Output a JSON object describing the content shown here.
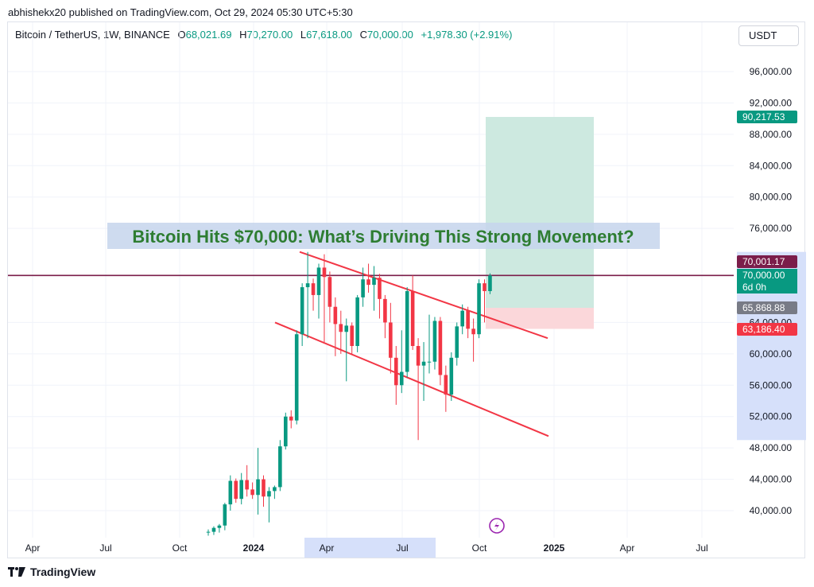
{
  "header": {
    "published": "abhishekx20 published on TradingView.com, Oct 29, 2024 05:30 UTC+5:30"
  },
  "legend": {
    "symbol": "Bitcoin / TetherUS, 1W, BINANCE",
    "o_label": "O",
    "o_value": "68,021.69",
    "h_label": "H",
    "h_value": "70,270.00",
    "l_label": "L",
    "l_value": "67,618.00",
    "c_label": "C",
    "c_value": "70,000.00",
    "change": "+1,978.30 (+2.91%)"
  },
  "currency_button": "USDT",
  "headline": "Bitcoin Hits $70,000: What’s Driving This Strong Movement?",
  "footer": {
    "brand": "TradingView"
  },
  "colors": {
    "up": "#089981",
    "down": "#f23645",
    "trendline": "#f23645",
    "headline_text": "#2e7d32",
    "headline_bg": "#c5d5ec",
    "profit_zone": "#cde9e0",
    "loss_zone": "#fbd7da",
    "hline": "#7b1d4a",
    "axis_highlight": "#d6e0fa"
  },
  "chart_data": {
    "type": "candlestick",
    "y_axis": {
      "range": [
        37500,
        100000
      ],
      "tick_labels": [
        "40,000.00",
        "44,000.00",
        "48,000.00",
        "52,000.00",
        "56,000.00",
        "60,000.00",
        "64,000.00",
        "76,000.00",
        "80,000.00",
        "84,000.00",
        "88,000.00",
        "92,000.00",
        "96,000.00"
      ],
      "tick_values": [
        40000,
        44000,
        48000,
        52000,
        56000,
        60000,
        64000,
        76000,
        80000,
        84000,
        88000,
        92000,
        96000
      ]
    },
    "x_axis": {
      "labels": [
        "Apr",
        "Jul",
        "Oct",
        "2024",
        "Apr",
        "Jul",
        "Oct",
        "2025",
        "Apr",
        "Jul"
      ],
      "bold_labels": [
        "2024",
        "2025"
      ]
    },
    "price_labels": [
      {
        "text": "90,217.53",
        "value": 90217.53,
        "color": "#089981"
      },
      {
        "text": "70,001.17",
        "value": 70001.17,
        "color": "#7b1d4a"
      },
      {
        "text": "70,000.00",
        "value": 70000,
        "color": "#089981"
      },
      {
        "text": "6d 0h",
        "value": 68700,
        "color": "#089981"
      },
      {
        "text": "65,868.88",
        "value": 65868.88,
        "color": "#787b86"
      },
      {
        "text": "63,186.40",
        "value": 63186.4,
        "color": "#f23645"
      }
    ],
    "horizontal_line": 70001.17,
    "position": {
      "entry": 65868.88,
      "target": 90217.53,
      "stop": 63186.4
    },
    "candles": [
      {
        "o": 37200,
        "h": 37600,
        "l": 36800,
        "c": 37300
      },
      {
        "o": 37300,
        "h": 38000,
        "l": 36900,
        "c": 37800
      },
      {
        "o": 37800,
        "h": 38300,
        "l": 37200,
        "c": 38100
      },
      {
        "o": 38100,
        "h": 41000,
        "l": 37500,
        "c": 40800
      },
      {
        "o": 40800,
        "h": 44500,
        "l": 40000,
        "c": 43800
      },
      {
        "o": 43800,
        "h": 44100,
        "l": 41000,
        "c": 41500
      },
      {
        "o": 41500,
        "h": 44800,
        "l": 40800,
        "c": 43900
      },
      {
        "o": 43900,
        "h": 45800,
        "l": 41800,
        "c": 42700
      },
      {
        "o": 42700,
        "h": 43600,
        "l": 41500,
        "c": 42000
      },
      {
        "o": 42000,
        "h": 48000,
        "l": 39500,
        "c": 44000
      },
      {
        "o": 44000,
        "h": 44500,
        "l": 40500,
        "c": 41800
      },
      {
        "o": 41800,
        "h": 43000,
        "l": 38500,
        "c": 42500
      },
      {
        "o": 42500,
        "h": 43200,
        "l": 41500,
        "c": 43000
      },
      {
        "o": 43000,
        "h": 49000,
        "l": 42500,
        "c": 48200
      },
      {
        "o": 48200,
        "h": 52500,
        "l": 47800,
        "c": 52000
      },
      {
        "o": 52000,
        "h": 52800,
        "l": 50500,
        "c": 51500
      },
      {
        "o": 51500,
        "h": 63000,
        "l": 51000,
        "c": 62500
      },
      {
        "o": 62500,
        "h": 69000,
        "l": 61000,
        "c": 68500
      },
      {
        "o": 68500,
        "h": 73000,
        "l": 62000,
        "c": 69000
      },
      {
        "o": 69000,
        "h": 69600,
        "l": 65500,
        "c": 67500
      },
      {
        "o": 67500,
        "h": 71500,
        "l": 64500,
        "c": 71000
      },
      {
        "o": 71000,
        "h": 72700,
        "l": 61500,
        "c": 69800
      },
      {
        "o": 69800,
        "h": 70500,
        "l": 64000,
        "c": 66000
      },
      {
        "o": 66000,
        "h": 67200,
        "l": 59700,
        "c": 63800
      },
      {
        "o": 63800,
        "h": 65500,
        "l": 60000,
        "c": 62800
      },
      {
        "o": 62800,
        "h": 64500,
        "l": 56500,
        "c": 63600
      },
      {
        "o": 63600,
        "h": 64000,
        "l": 60000,
        "c": 61000
      },
      {
        "o": 61000,
        "h": 67500,
        "l": 60200,
        "c": 67200
      },
      {
        "o": 67200,
        "h": 71000,
        "l": 66000,
        "c": 69500
      },
      {
        "o": 69500,
        "h": 71500,
        "l": 67800,
        "c": 68800
      },
      {
        "o": 68800,
        "h": 71200,
        "l": 65500,
        "c": 69700
      },
      {
        "o": 69700,
        "h": 70200,
        "l": 64500,
        "c": 67000
      },
      {
        "o": 67000,
        "h": 67500,
        "l": 62000,
        "c": 64000
      },
      {
        "o": 64000,
        "h": 66500,
        "l": 57500,
        "c": 59500
      },
      {
        "o": 59500,
        "h": 61000,
        "l": 53500,
        "c": 56000
      },
      {
        "o": 56000,
        "h": 63000,
        "l": 55000,
        "c": 57700
      },
      {
        "o": 57700,
        "h": 68500,
        "l": 57000,
        "c": 68000
      },
      {
        "o": 68000,
        "h": 70000,
        "l": 60500,
        "c": 61000
      },
      {
        "o": 61000,
        "h": 62000,
        "l": 49000,
        "c": 58500
      },
      {
        "o": 58500,
        "h": 61500,
        "l": 54000,
        "c": 59000
      },
      {
        "o": 59000,
        "h": 65000,
        "l": 57500,
        "c": 59000
      },
      {
        "o": 59000,
        "h": 64700,
        "l": 58000,
        "c": 64200
      },
      {
        "o": 64200,
        "h": 64700,
        "l": 56000,
        "c": 57300
      },
      {
        "o": 57300,
        "h": 58500,
        "l": 52600,
        "c": 54800
      },
      {
        "o": 54800,
        "h": 60200,
        "l": 54000,
        "c": 59500
      },
      {
        "o": 59500,
        "h": 64000,
        "l": 58500,
        "c": 63500
      },
      {
        "o": 63500,
        "h": 66300,
        "l": 62500,
        "c": 65500
      },
      {
        "o": 65500,
        "h": 66000,
        "l": 62000,
        "c": 63200
      },
      {
        "o": 63200,
        "h": 64500,
        "l": 59000,
        "c": 62500
      },
      {
        "o": 62500,
        "h": 69500,
        "l": 62000,
        "c": 69000
      },
      {
        "o": 69000,
        "h": 69500,
        "l": 64000,
        "c": 68000
      },
      {
        "o": 68000,
        "h": 70270,
        "l": 67618,
        "c": 70000
      }
    ]
  }
}
